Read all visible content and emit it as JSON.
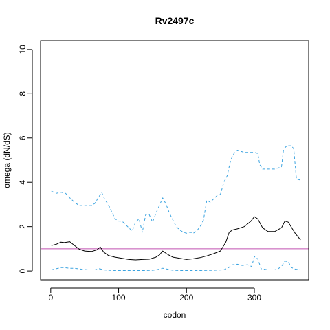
{
  "chart_data": {
    "type": "line",
    "title": "Rv2497c",
    "xlabel": "codon",
    "ylabel": "omega (dN/dS)",
    "xlim": [
      -15,
      380
    ],
    "ylim": [
      -0.4,
      10.4
    ],
    "xticks": [
      0,
      100,
      200,
      300
    ],
    "yticks": [
      0,
      2,
      4,
      6,
      8,
      10
    ],
    "grid": false,
    "reference_line": {
      "y": 1,
      "color": "#c050b0"
    },
    "colors": {
      "omega": "#000000",
      "bounds": "#3ba3e0"
    },
    "series": [
      {
        "style": "solid",
        "x": [
          1,
          8,
          15,
          20,
          28,
          35,
          42,
          50,
          60,
          68,
          73,
          78,
          85,
          95,
          105,
          115,
          125,
          135,
          145,
          155,
          160,
          165,
          172,
          180,
          190,
          200,
          210,
          220,
          230,
          240,
          250,
          258,
          263,
          268,
          275,
          285,
          295,
          300,
          305,
          312,
          320,
          330,
          340,
          345,
          350,
          355,
          360,
          368
        ],
        "y": [
          1.15,
          1.2,
          1.3,
          1.28,
          1.32,
          1.15,
          0.98,
          0.9,
          0.88,
          0.95,
          1.08,
          0.85,
          0.7,
          0.62,
          0.57,
          0.52,
          0.5,
          0.52,
          0.53,
          0.62,
          0.72,
          0.9,
          0.75,
          0.62,
          0.57,
          0.52,
          0.55,
          0.6,
          0.68,
          0.78,
          0.9,
          1.3,
          1.75,
          1.85,
          1.9,
          2.0,
          2.25,
          2.45,
          2.35,
          1.95,
          1.78,
          1.78,
          1.95,
          2.25,
          2.2,
          1.95,
          1.7,
          1.4
        ]
      },
      {
        "style": "dashed",
        "x": [
          1,
          8,
          15,
          22,
          28,
          35,
          42,
          50,
          60,
          65,
          70,
          75,
          80,
          85,
          90,
          95,
          100,
          105,
          110,
          115,
          120,
          125,
          130,
          135,
          140,
          145,
          150,
          155,
          160,
          165,
          170,
          175,
          180,
          185,
          190,
          195,
          200,
          205,
          210,
          215,
          220,
          225,
          230,
          235,
          240,
          245,
          250,
          255,
          260,
          265,
          270,
          275,
          280,
          285,
          290,
          295,
          300,
          305,
          308,
          312,
          320,
          330,
          340,
          343,
          348,
          355,
          358,
          362,
          368
        ],
        "y": [
          3.6,
          3.5,
          3.55,
          3.5,
          3.3,
          3.1,
          2.95,
          2.95,
          2.95,
          3.05,
          3.3,
          3.55,
          3.2,
          3.0,
          2.65,
          2.35,
          2.25,
          2.25,
          2.1,
          1.95,
          1.8,
          2.2,
          2.35,
          1.75,
          2.55,
          2.55,
          2.2,
          2.6,
          2.95,
          3.3,
          3.0,
          2.6,
          2.3,
          2.0,
          1.85,
          1.75,
          1.7,
          1.75,
          1.7,
          1.8,
          2.0,
          2.3,
          3.2,
          3.1,
          3.25,
          3.4,
          3.45,
          4.0,
          4.3,
          5.0,
          5.3,
          5.45,
          5.4,
          5.35,
          5.35,
          5.35,
          5.35,
          5.3,
          4.8,
          4.6,
          4.6,
          4.6,
          4.7,
          5.5,
          5.65,
          5.65,
          5.5,
          4.15,
          4.1
        ]
      },
      {
        "style": "dashed",
        "x": [
          1,
          8,
          15,
          20,
          28,
          35,
          45,
          55,
          65,
          72,
          78,
          85,
          95,
          110,
          125,
          140,
          150,
          155,
          160,
          165,
          172,
          180,
          190,
          200,
          210,
          220,
          240,
          255,
          262,
          268,
          275,
          282,
          290,
          296,
          300,
          305,
          310,
          320,
          330,
          335,
          340,
          345,
          350,
          355,
          360,
          368
        ],
        "y": [
          0.05,
          0.1,
          0.15,
          0.15,
          0.12,
          0.12,
          0.08,
          0.05,
          0.05,
          0.1,
          0.05,
          0.03,
          0.02,
          0.02,
          0.02,
          0.02,
          0.03,
          0.05,
          0.08,
          0.12,
          0.08,
          0.03,
          0.02,
          0.02,
          0.02,
          0.02,
          0.03,
          0.05,
          0.15,
          0.28,
          0.3,
          0.25,
          0.28,
          0.2,
          0.65,
          0.55,
          0.1,
          0.05,
          0.05,
          0.1,
          0.2,
          0.45,
          0.4,
          0.15,
          0.08,
          0.05
        ]
      }
    ]
  }
}
